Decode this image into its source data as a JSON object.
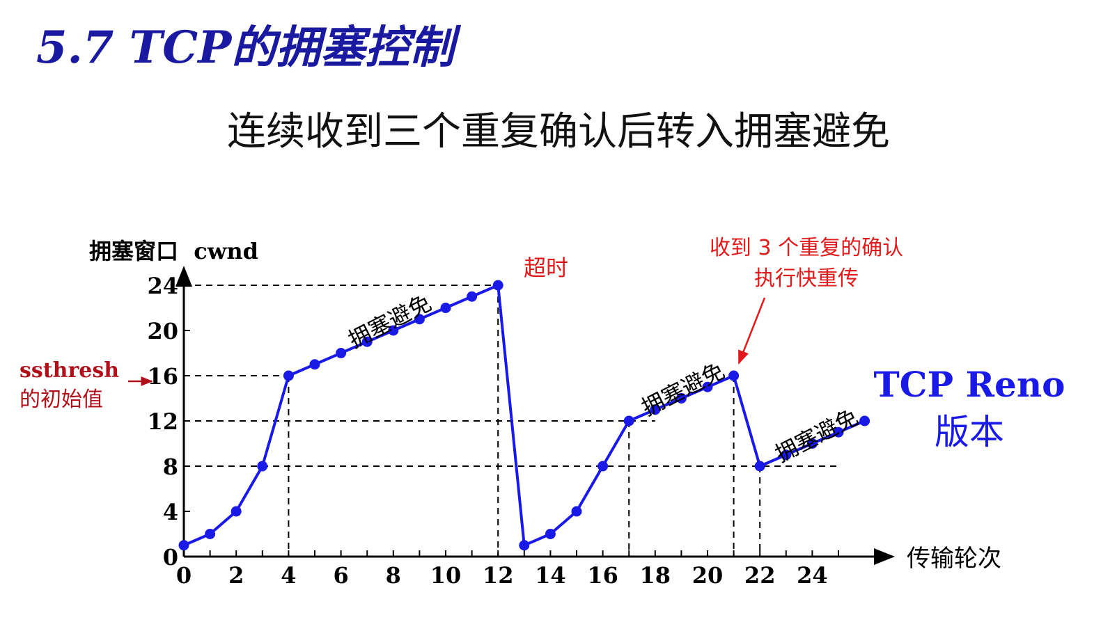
{
  "page": {
    "title": "5.7  TCP的拥塞控制",
    "subtitle": "连续收到三个重复确认后转入拥塞避免"
  },
  "annotations": {
    "ssthresh_line1": "ssthresh",
    "ssthresh_line2": "的初始值",
    "timeout": "超时",
    "dupack_line1": "收到 3 个重复的确认",
    "dupack_line2": "执行快重传",
    "version_line1": "TCP Reno",
    "version_line2": "版本",
    "ca_label": "拥塞避免"
  },
  "colors": {
    "title": "#1a1aa0",
    "series": "#1a1ae6",
    "annotation": "#e01a1a",
    "ssthresh": "#b0101a",
    "axis": "#000000"
  },
  "chart_data": {
    "type": "line",
    "title": "",
    "ylabel": "拥塞窗口  cwnd",
    "xlabel": "传输轮次",
    "xlim": [
      0,
      26
    ],
    "ylim": [
      0,
      26
    ],
    "x_ticks": [
      0,
      2,
      4,
      6,
      8,
      10,
      12,
      14,
      16,
      18,
      20,
      22,
      24
    ],
    "y_ticks": [
      0,
      4,
      8,
      12,
      16,
      20,
      24
    ],
    "series": [
      {
        "name": "cwnd",
        "x": [
          0,
          1,
          2,
          3,
          4,
          5,
          6,
          7,
          8,
          9,
          10,
          11,
          12,
          13,
          14,
          15,
          16,
          17,
          18,
          19,
          20,
          21,
          22,
          23,
          24,
          25,
          26
        ],
        "y": [
          1,
          2,
          4,
          8,
          16,
          17,
          18,
          19,
          20,
          21,
          22,
          23,
          24,
          1,
          2,
          4,
          8,
          12,
          13,
          14,
          15,
          16,
          8,
          9,
          10,
          11,
          12
        ]
      }
    ],
    "reference_lines": [
      {
        "y": 24,
        "x_end": 12
      },
      {
        "y": 16,
        "x_end": 4
      },
      {
        "y": 12,
        "x_end": 18
      },
      {
        "y": 8,
        "x_end": 25
      }
    ],
    "drop_lines": [
      {
        "x": 4,
        "y": 16
      },
      {
        "x": 12,
        "y": 24
      },
      {
        "x": 17,
        "y": 12
      },
      {
        "x": 21,
        "y": 16
      },
      {
        "x": 22,
        "y": 8
      }
    ],
    "segment_labels": [
      {
        "text": "拥塞避免",
        "x": 8.0,
        "y": 20.2
      },
      {
        "text": "拥塞避免",
        "x": 19.2,
        "y": 14.2
      },
      {
        "text": "拥塞避免",
        "x": 24.3,
        "y": 10.1
      }
    ]
  }
}
